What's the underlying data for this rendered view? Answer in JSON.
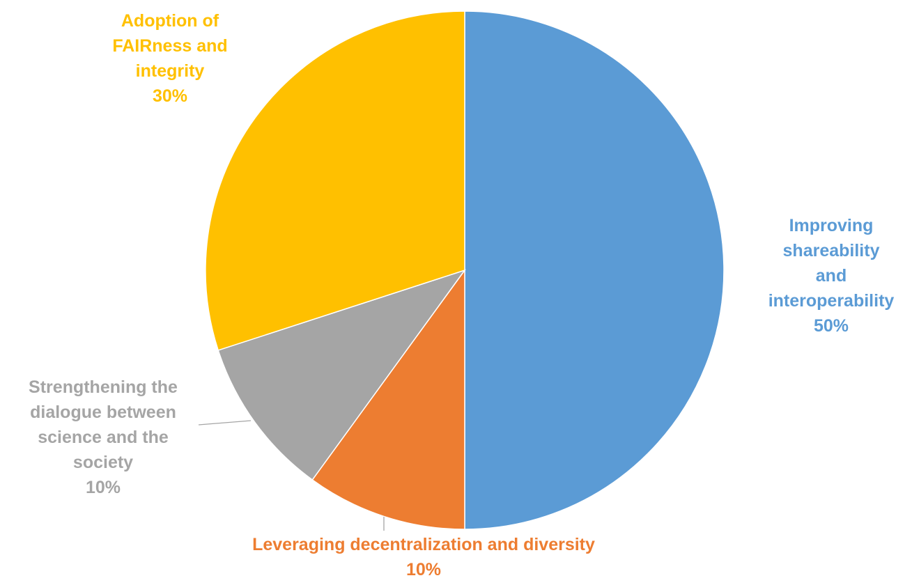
{
  "chart_data": {
    "type": "pie",
    "title": "",
    "start_angle_deg": 0,
    "direction": "clockwise",
    "slices": [
      {
        "label_lines": [
          "Improving",
          "shareability and",
          "interoperability"
        ],
        "value": 50,
        "percent_label": "50%",
        "color": "#5b9bd5"
      },
      {
        "label_lines": [
          "Leveraging decentralization and diversity"
        ],
        "value": 10,
        "percent_label": "10%",
        "color": "#ed7d31"
      },
      {
        "label_lines": [
          "Strengthening the",
          "dialogue between",
          "science and the",
          "society"
        ],
        "value": 10,
        "percent_label": "10%",
        "color": "#a5a5a5"
      },
      {
        "label_lines": [
          "Adoption of",
          "FAIRness and",
          "integrity"
        ],
        "value": 30,
        "percent_label": "30%",
        "color": "#ffc000"
      }
    ]
  }
}
